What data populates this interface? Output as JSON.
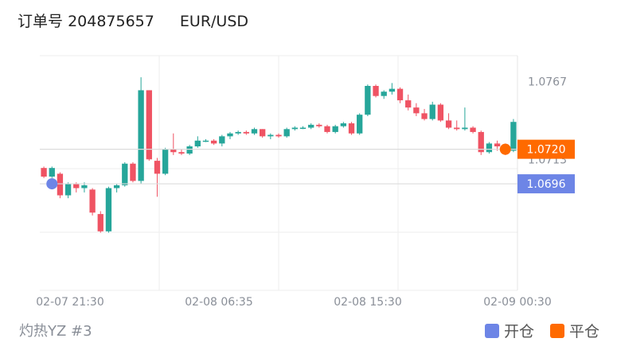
{
  "header": {
    "order_label": "订单号",
    "order_number": "204875657",
    "symbol": "EUR/USD"
  },
  "footer": {
    "account": "灼热YZ #3"
  },
  "legend": [
    {
      "label": "开仓",
      "color": "#6d85e6"
    },
    {
      "label": "平仓",
      "color": "#ff6a00"
    }
  ],
  "colors": {
    "up": "#26a69a",
    "down": "#ef5363",
    "grid": "#eeeeee"
  },
  "chart_data": {
    "type": "candlestick",
    "x_ticks": [
      "02-07 21:30",
      "02-08 06:35",
      "02-08 15:30",
      "02-09 00:30"
    ],
    "y_ticks": [
      "1.0767",
      "1.0713"
    ],
    "ylim": [
      1.0622,
      1.0785
    ],
    "price_tags": [
      {
        "text": "1.0720",
        "value": 1.072,
        "color": "#ff6a00"
      },
      {
        "text": "1.0696",
        "value": 1.0696,
        "color": "#6d85e6"
      }
    ],
    "markers": [
      {
        "type": "open",
        "index": 1,
        "value": 1.0696,
        "color": "#6d85e6"
      },
      {
        "type": "close",
        "index": 57,
        "value": 1.072,
        "color": "#ff6a00"
      }
    ],
    "candles": [
      [
        1.0707,
        1.0708,
        1.07,
        1.0701
      ],
      [
        1.0701,
        1.0708,
        1.07,
        1.0707
      ],
      [
        1.0703,
        1.0704,
        1.0686,
        1.0688
      ],
      [
        1.0688,
        1.0697,
        1.0686,
        1.0696
      ],
      [
        1.0696,
        1.0697,
        1.069,
        1.0693
      ],
      [
        1.0693,
        1.0697,
        1.069,
        1.0695
      ],
      [
        1.0692,
        1.0693,
        1.0674,
        1.0676
      ],
      [
        1.0675,
        1.0677,
        1.0662,
        1.0663
      ],
      [
        1.0663,
        1.0694,
        1.0662,
        1.0693
      ],
      [
        1.0693,
        1.0696,
        1.069,
        1.0695
      ],
      [
        1.0695,
        1.0711,
        1.0694,
        1.071
      ],
      [
        1.071,
        1.0711,
        1.0697,
        1.0698
      ],
      [
        1.0698,
        1.077,
        1.0696,
        1.0761
      ],
      [
        1.0761,
        1.0761,
        1.0712,
        1.0713
      ],
      [
        1.0712,
        1.0714,
        1.0687,
        1.0703
      ],
      [
        1.0703,
        1.0721,
        1.0702,
        1.072
      ],
      [
        1.072,
        1.0731,
        1.0716,
        1.0718
      ],
      [
        1.0718,
        1.072,
        1.0716,
        1.0717
      ],
      [
        1.0717,
        1.0723,
        1.0716,
        1.0722
      ],
      [
        1.0722,
        1.0729,
        1.0721,
        1.0726
      ],
      [
        1.0726,
        1.0727,
        1.0725,
        1.0726
      ],
      [
        1.0726,
        1.0727,
        1.0723,
        1.0724
      ],
      [
        1.0724,
        1.073,
        1.0722,
        1.0729
      ],
      [
        1.0729,
        1.0732,
        1.0727,
        1.0731
      ],
      [
        1.0731,
        1.0733,
        1.073,
        1.0732
      ],
      [
        1.0732,
        1.0733,
        1.073,
        1.0731
      ],
      [
        1.0731,
        1.0735,
        1.073,
        1.0734
      ],
      [
        1.0734,
        1.0734,
        1.0728,
        1.0729
      ],
      [
        1.0729,
        1.0731,
        1.0727,
        1.073
      ],
      [
        1.073,
        1.0731,
        1.0728,
        1.0729
      ],
      [
        1.0729,
        1.0735,
        1.0728,
        1.0734
      ],
      [
        1.0734,
        1.0736,
        1.0733,
        1.0735
      ],
      [
        1.0735,
        1.0736,
        1.0734,
        1.0735
      ],
      [
        1.0735,
        1.0738,
        1.0734,
        1.0737
      ],
      [
        1.0737,
        1.0738,
        1.0735,
        1.0736
      ],
      [
        1.0736,
        1.0737,
        1.0731,
        1.0732
      ],
      [
        1.0732,
        1.0737,
        1.0731,
        1.0736
      ],
      [
        1.0736,
        1.0739,
        1.0735,
        1.0738
      ],
      [
        1.0738,
        1.0739,
        1.073,
        1.0731
      ],
      [
        1.0731,
        1.0745,
        1.073,
        1.0744
      ],
      [
        1.0744,
        1.0765,
        1.0743,
        1.0764
      ],
      [
        1.0764,
        1.0765,
        1.0756,
        1.0757
      ],
      [
        1.0757,
        1.0761,
        1.0755,
        1.076
      ],
      [
        1.076,
        1.0766,
        1.0758,
        1.0762
      ],
      [
        1.0762,
        1.0763,
        1.0752,
        1.0754
      ],
      [
        1.0754,
        1.0758,
        1.0747,
        1.0749
      ],
      [
        1.0749,
        1.0752,
        1.0743,
        1.0745
      ],
      [
        1.0745,
        1.0748,
        1.074,
        1.0741
      ],
      [
        1.0741,
        1.0753,
        1.074,
        1.0751
      ],
      [
        1.0751,
        1.0752,
        1.0739,
        1.074
      ],
      [
        1.074,
        1.0745,
        1.0734,
        1.0735
      ],
      [
        1.0735,
        1.074,
        1.0733,
        1.0734
      ],
      [
        1.0734,
        1.0749,
        1.0733,
        1.0735
      ],
      [
        1.0735,
        1.0736,
        1.0731,
        1.0732
      ],
      [
        1.0732,
        1.0733,
        1.0716,
        1.0718
      ],
      [
        1.0718,
        1.0725,
        1.0717,
        1.0724
      ],
      [
        1.0724,
        1.0726,
        1.0719,
        1.0722
      ],
      [
        1.0722,
        1.0724,
        1.0716,
        1.0719
      ],
      [
        1.0719,
        1.0741,
        1.0718,
        1.0739
      ]
    ]
  }
}
